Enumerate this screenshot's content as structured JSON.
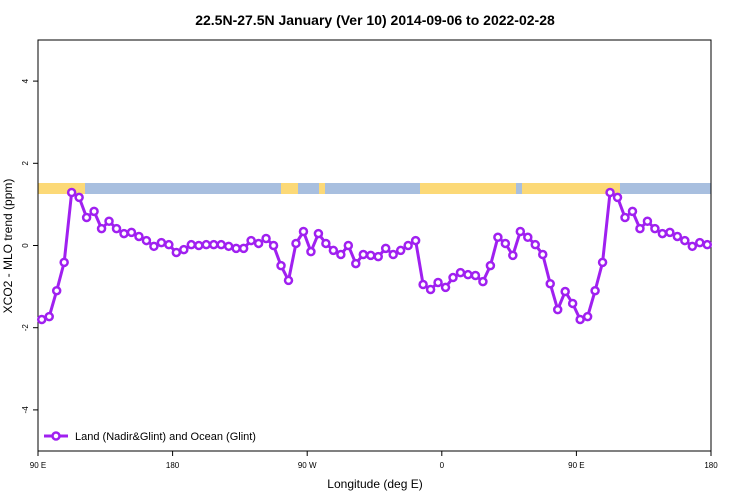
{
  "chart_data": {
    "type": "line",
    "title": "22.5N-27.5N January (Ver 10)   2014-09-06 to 2022-02-28",
    "xlabel": "Longitude (deg E)",
    "ylabel": "XCO2 - MLO trend (ppm)",
    "xlim": [
      90,
      540
    ],
    "ylim": [
      -5,
      5
    ],
    "xticks": [
      {
        "value": 90,
        "label": "90 E"
      },
      180,
      {
        "value": 270,
        "label": "90 W"
      },
      {
        "value": 360,
        "label": "0"
      },
      {
        "value": 450,
        "label": "90 E"
      },
      {
        "value": 540,
        "label": "180"
      }
    ],
    "yticks": [
      -4,
      -2,
      0,
      2,
      4
    ],
    "legend": "bottom-left",
    "x": [
      92.5,
      97.5,
      102.5,
      107.5,
      112.5,
      117.5,
      122.5,
      127.5,
      132.5,
      137.5,
      142.5,
      147.5,
      152.5,
      157.5,
      162.5,
      167.5,
      172.5,
      177.5,
      182.5,
      187.5,
      192.5,
      197.5,
      202.5,
      207.5,
      212.5,
      217.5,
      222.5,
      227.5,
      232.5,
      237.5,
      242.5,
      247.5,
      252.5,
      257.5,
      262.5,
      267.5,
      272.5,
      277.5,
      282.5,
      287.5,
      292.5,
      297.5,
      302.5,
      307.5,
      312.5,
      317.5,
      322.5,
      327.5,
      332.5,
      337.5,
      342.5,
      347.5,
      352.5,
      357.5,
      362.5,
      367.5,
      372.5,
      377.5,
      382.5,
      387.5,
      392.5,
      397.5,
      402.5,
      407.5,
      412.5,
      417.5,
      422.5,
      427.5,
      432.5,
      437.5,
      442.5,
      447.5,
      452.5,
      457.5,
      462.5,
      467.5,
      472.5,
      477.5,
      482.5,
      487.5,
      492.5,
      497.5,
      502.5,
      507.5,
      512.5,
      517.5,
      522.5,
      527.5,
      532.5,
      537.5
    ],
    "series": [
      {
        "name": "Land (Nadir&Glint) and Ocean (Glint)",
        "color": "#a020f0",
        "values": [
          -1.8,
          -1.73,
          -1.1,
          -0.41,
          1.29,
          1.17,
          0.68,
          0.83,
          0.41,
          0.59,
          0.41,
          0.29,
          0.32,
          0.22,
          0.12,
          -0.02,
          0.07,
          0.02,
          -0.17,
          -0.1,
          0.02,
          0,
          0.02,
          0.02,
          0.02,
          -0.02,
          -0.07,
          -0.07,
          0.12,
          0.05,
          0.17,
          0,
          -0.49,
          -0.85,
          0.05,
          0.34,
          -0.15,
          0.29,
          0.05,
          -0.12,
          -0.22,
          0,
          -0.44,
          -0.22,
          -0.24,
          -0.27,
          -0.07,
          -0.22,
          -0.12,
          0,
          0.12,
          -0.95,
          -1.07,
          -0.9,
          -1.02,
          -0.78,
          -0.66,
          -0.71,
          -0.73,
          -0.88,
          -0.49,
          0.2,
          0.05,
          -0.24,
          0.34,
          0.2,
          0.02,
          -0.22,
          -0.93,
          -1.56,
          -1.12,
          -1.41,
          -1.8,
          -1.73,
          -1.1,
          -0.41,
          1.29,
          1.17,
          0.68,
          0.83,
          0.41,
          0.59,
          0.41,
          0.29,
          0.32,
          0.22,
          0.12,
          -0.02,
          0.07,
          0.02
        ]
      }
    ]
  }
}
